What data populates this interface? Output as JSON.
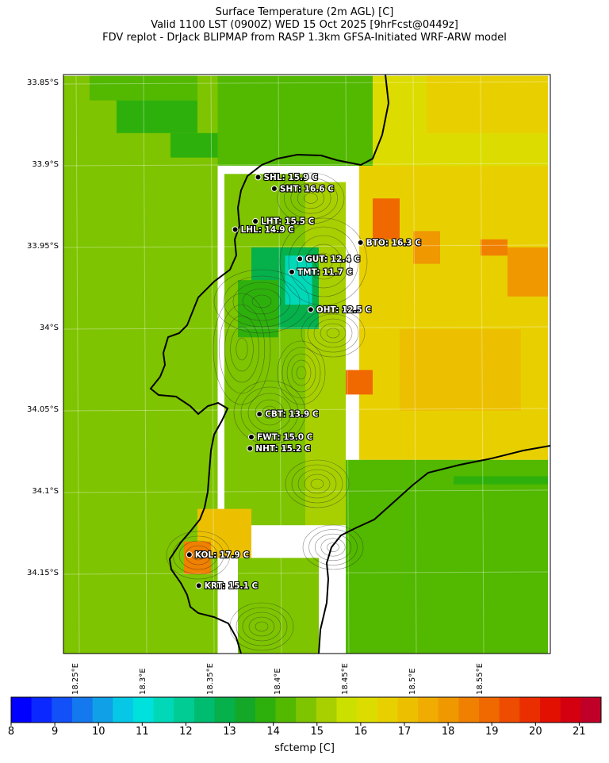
{
  "title_lines": [
    "Surface Temperature (2m AGL) [C]",
    "Valid 1100 LST (0900Z) WED 15 Oct 2025 [9hrFcst@0449z]",
    "FDV replot - DrJack BLIPMAP from RASP 1.3km GFSA-Initiated WRF-ARW model"
  ],
  "lat_labels": [
    "33.85°S",
    "33.9°S",
    "33.95°S",
    "34°S",
    "34.05°S",
    "34.1°S",
    "34.15°S"
  ],
  "lon_labels": [
    "18.25°E",
    "18.3°E",
    "18.35°E",
    "18.4°E",
    "18.45°E",
    "18.5°E",
    "18.55°E"
  ],
  "stations": [
    {
      "id": "SHL",
      "label": "SHL: 15.9 C",
      "lon": 18.385,
      "lat": 33.907
    },
    {
      "id": "SHT",
      "label": "SHT: 16.6 C",
      "lon": 18.397,
      "lat": 33.914
    },
    {
      "id": "LHT",
      "label": "LHT: 15.5 C",
      "lon": 18.383,
      "lat": 33.934
    },
    {
      "id": "LHL",
      "label": "LHL: 14.9 C",
      "lon": 18.368,
      "lat": 33.939
    },
    {
      "id": "BTO",
      "label": "BTO: 16.3 C",
      "lon": 18.461,
      "lat": 33.947
    },
    {
      "id": "GUT",
      "label": "GUT: 12.4 C",
      "lon": 18.416,
      "lat": 33.957
    },
    {
      "id": "TMT",
      "label": "TMT: 11.7 C",
      "lon": 18.41,
      "lat": 33.965
    },
    {
      "id": "OHT",
      "label": "OHT: 12.5 C",
      "lon": 18.424,
      "lat": 33.988
    },
    {
      "id": "CBT",
      "label": "CBT: 13.9 C",
      "lon": 18.386,
      "lat": 34.052
    },
    {
      "id": "FWT",
      "label": "FWT: 15.0 C",
      "lon": 18.38,
      "lat": 34.066
    },
    {
      "id": "NHT",
      "label": "NHT: 15.2 C",
      "lon": 18.379,
      "lat": 34.073
    },
    {
      "id": "KOL",
      "label": "KOL: 17.9 C",
      "lon": 18.334,
      "lat": 34.138
    },
    {
      "id": "KRT",
      "label": "KRT: 15.1 C",
      "lon": 18.341,
      "lat": 34.157
    }
  ],
  "colorbar": {
    "label": "sfctemp [C]",
    "min": 8,
    "max": 21.5,
    "step": 0.5,
    "ticks": [
      "8",
      "9",
      "10",
      "11",
      "12",
      "13",
      "14",
      "15",
      "16",
      "17",
      "18",
      "19",
      "20",
      "21"
    ],
    "colors": [
      "#0000ff",
      "#0a28ff",
      "#1250f8",
      "#1478ee",
      "#10a0e8",
      "#06c8e6",
      "#00e0dc",
      "#00d8b8",
      "#00cc94",
      "#00bc70",
      "#06b04a",
      "#14a828",
      "#2eb00c",
      "#52b800",
      "#7ec400",
      "#a8d000",
      "#cce000",
      "#dcdc00",
      "#e8d000",
      "#ecc000",
      "#f0ac00",
      "#f09800",
      "#f08000",
      "#f06800",
      "#ee4c00",
      "#ea2e00",
      "#e21000",
      "#d40010",
      "#c00028"
    ]
  },
  "chart_data": {
    "type": "heatmap",
    "variable": "sfctemp",
    "units": "C",
    "lon_range": [
      18.24,
      18.6
    ],
    "lat_range": [
      -34.2,
      -33.845
    ],
    "cells": [
      {
        "lon": [
          18.24,
          18.355
        ],
        "lat": [
          -33.845,
          -34.2
        ],
        "t": 15.2
      },
      {
        "lon": [
          18.26,
          18.34
        ],
        "lat": [
          -33.845,
          -33.86
        ],
        "t": 14.6
      },
      {
        "lon": [
          18.28,
          18.34
        ],
        "lat": [
          -33.86,
          -33.88
        ],
        "t": 14.2
      },
      {
        "lon": [
          18.32,
          18.38
        ],
        "lat": [
          -33.88,
          -33.895
        ],
        "t": 14.3
      },
      {
        "lon": [
          18.355,
          18.47
        ],
        "lat": [
          -33.845,
          -33.9
        ],
        "t": 14.9
      },
      {
        "lon": [
          18.47,
          18.6
        ],
        "lat": [
          -33.845,
          -33.9
        ],
        "t": 16.5
      },
      {
        "lon": [
          18.51,
          18.6
        ],
        "lat": [
          -33.845,
          -33.88
        ],
        "t": 17.4
      },
      {
        "lon": [
          18.46,
          18.6
        ],
        "lat": [
          -33.9,
          -34.08
        ],
        "t": 17.2
      },
      {
        "lon": [
          18.47,
          18.49
        ],
        "lat": [
          -33.92,
          -33.945
        ],
        "t": 19.6
      },
      {
        "lon": [
          18.5,
          18.52
        ],
        "lat": [
          -33.94,
          -33.96
        ],
        "t": 18.6
      },
      {
        "lon": [
          18.55,
          18.57
        ],
        "lat": [
          -33.945,
          -33.955
        ],
        "t": 19.4
      },
      {
        "lon": [
          18.57,
          18.6
        ],
        "lat": [
          -33.95,
          -33.98
        ],
        "t": 18.9
      },
      {
        "lon": [
          18.45,
          18.47
        ],
        "lat": [
          -34.025,
          -34.04
        ],
        "t": 19.6
      },
      {
        "lon": [
          18.43,
          18.44
        ],
        "lat": [
          -34.025,
          -34.04
        ],
        "t": 18.5
      },
      {
        "lon": [
          18.49,
          18.58
        ],
        "lat": [
          -34.0,
          -34.05
        ],
        "t": 17.8
      },
      {
        "lon": [
          18.42,
          18.45
        ],
        "lat": [
          -33.91,
          -34.12
        ],
        "t": 15.8
      },
      {
        "lon": [
          18.36,
          18.42
        ],
        "lat": [
          -33.905,
          -34.12
        ],
        "t": 15.4
      },
      {
        "lon": [
          18.38,
          18.43
        ],
        "lat": [
          -33.95,
          -34.0
        ],
        "t": 13.4
      },
      {
        "lon": [
          18.405,
          18.425
        ],
        "lat": [
          -33.955,
          -33.985
        ],
        "t": 11.8
      },
      {
        "lon": [
          18.37,
          18.4
        ],
        "lat": [
          -33.97,
          -34.005
        ],
        "t": 14.2
      },
      {
        "lon": [
          18.45,
          18.6
        ],
        "lat": [
          -34.08,
          -34.2
        ],
        "t": 14.6
      },
      {
        "lon": [
          18.53,
          18.6
        ],
        "lat": [
          -34.09,
          -34.095
        ],
        "t": 14.0
      },
      {
        "lon": [
          18.34,
          18.38
        ],
        "lat": [
          -34.11,
          -34.14
        ],
        "t": 17.9
      },
      {
        "lon": [
          18.33,
          18.35
        ],
        "lat": [
          -34.13,
          -34.15
        ],
        "t": 19.2
      },
      {
        "lon": [
          18.37,
          18.43
        ],
        "lat": [
          -34.14,
          -34.2
        ],
        "t": 15.2
      }
    ]
  }
}
